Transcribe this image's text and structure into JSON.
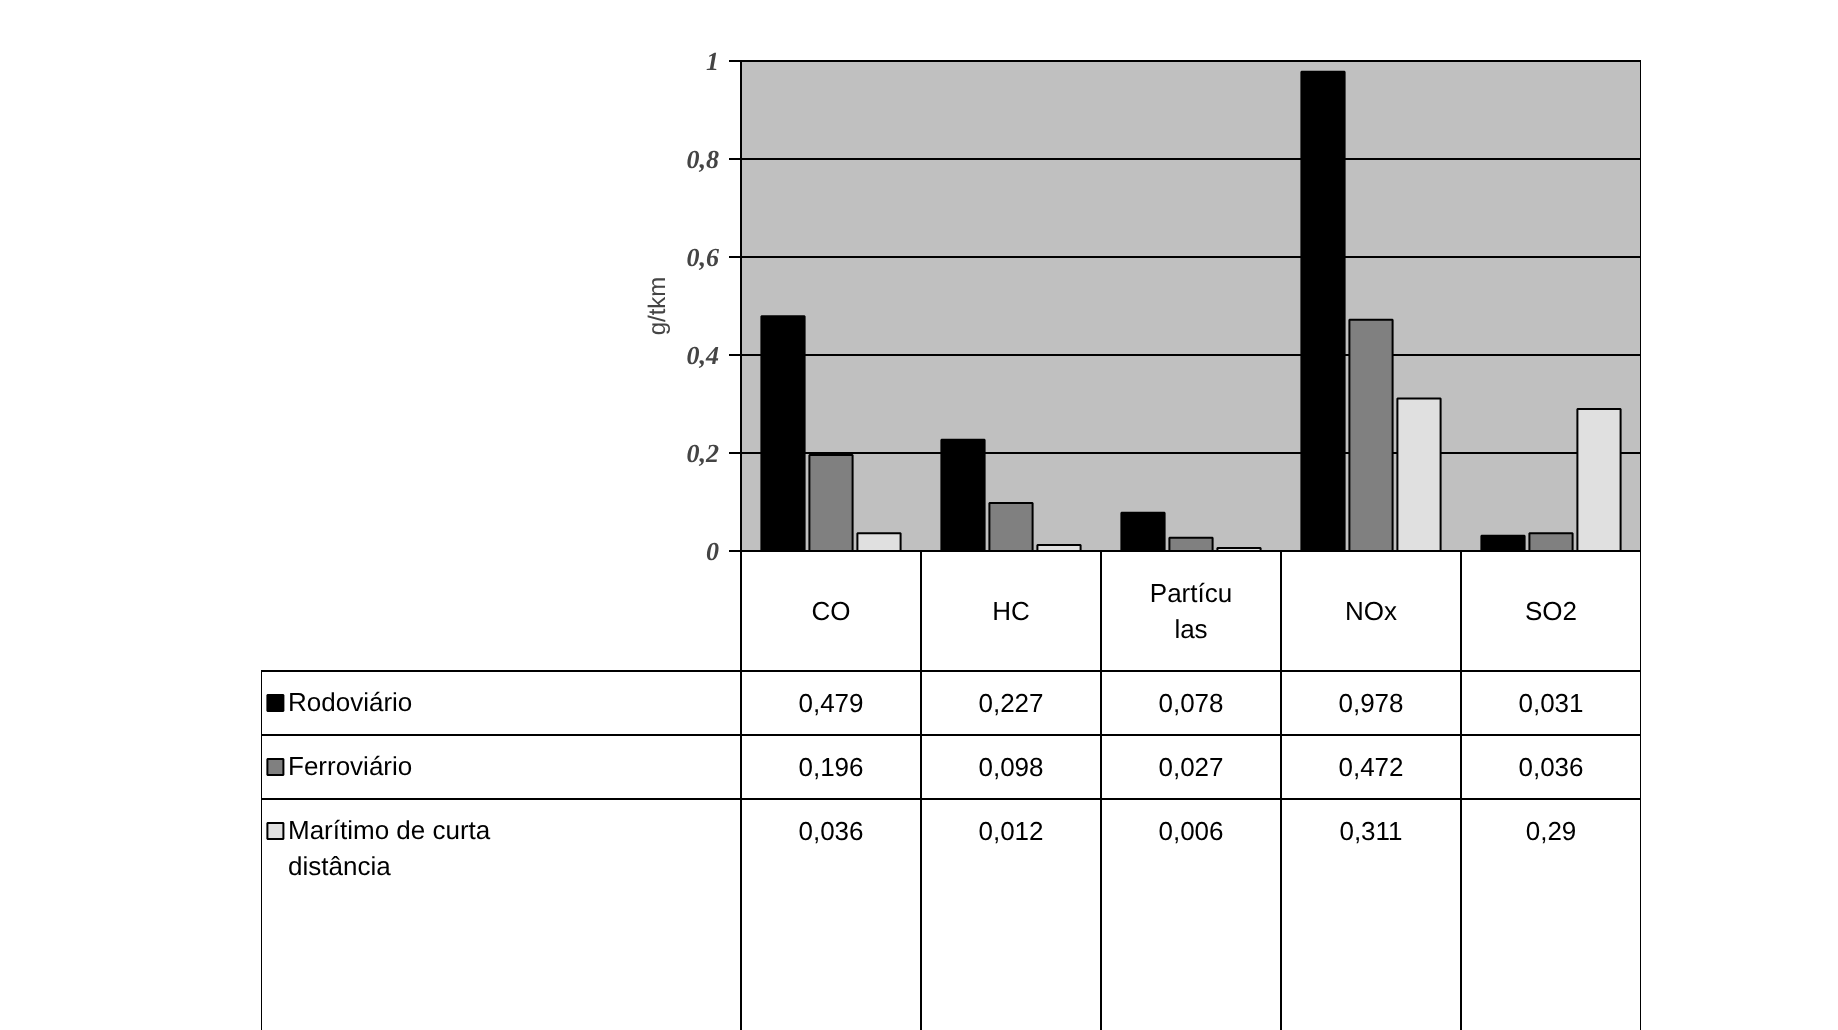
{
  "chart_data": {
    "type": "bar",
    "ylabel": "g/tkm",
    "categories": [
      "CO",
      "HC",
      "Partícu\nlas",
      "NOx",
      "SO2"
    ],
    "series": [
      {
        "name": "Rodoviário",
        "color": "#000000",
        "values": [
          0.479,
          0.227,
          0.078,
          0.978,
          0.031
        ],
        "value_labels": [
          "0,479",
          "0,227",
          "0,078",
          "0,978",
          "0,031"
        ]
      },
      {
        "name": "Ferroviário",
        "color": "#808080",
        "values": [
          0.196,
          0.098,
          0.027,
          0.472,
          0.036
        ],
        "value_labels": [
          "0,196",
          "0,098",
          "0,027",
          "0,472",
          "0,036"
        ]
      },
      {
        "name": "Marítimo de curta distância",
        "color": "#e0e0e0",
        "values": [
          0.036,
          0.012,
          0.006,
          0.311,
          0.29
        ],
        "value_labels": [
          "0,036",
          "0,012",
          "0,006",
          "0,311",
          "0,29"
        ]
      }
    ],
    "ylim": [
      0,
      1
    ],
    "yticks": [
      0,
      {
        "value": 0.2,
        "label": "0,2"
      },
      {
        "value": 0.4,
        "label": "0,4"
      },
      {
        "value": 0.6,
        "label": "0,6"
      },
      {
        "value": 0.8,
        "label": "0,8"
      },
      1
    ],
    "grid": "y",
    "legend": "bottom"
  }
}
